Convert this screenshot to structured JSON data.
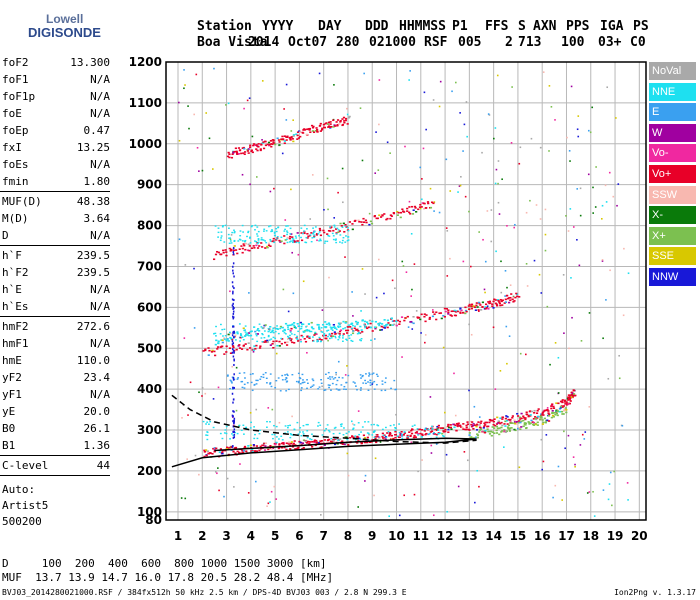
{
  "logo": {
    "line1": "Lowell",
    "line2": "DIGISONDE"
  },
  "header": {
    "labels": [
      "Station",
      "YYYY",
      "DAY",
      "DDD",
      "HHMMSS",
      "P1",
      "FFS",
      "S",
      "AXN",
      "PPS",
      "IGA",
      "PS"
    ],
    "values": [
      "Boa Vista",
      "2014",
      "Oct07",
      "280",
      "021000",
      "RSF",
      "005",
      "2",
      "713",
      "100",
      "03+",
      "C0"
    ]
  },
  "params": {
    "group1": [
      {
        "k": "foF2",
        "v": "13.300"
      },
      {
        "k": "foF1",
        "v": "N/A"
      },
      {
        "k": "foF1p",
        "v": "N/A"
      },
      {
        "k": "foE",
        "v": "N/A"
      },
      {
        "k": "foEp",
        "v": "0.47"
      },
      {
        "k": "fxI",
        "v": "13.25"
      },
      {
        "k": "foEs",
        "v": "N/A"
      },
      {
        "k": "fmin",
        "v": "1.80"
      }
    ],
    "group2": [
      {
        "k": "MUF(D)",
        "v": "48.38"
      },
      {
        "k": "M(D)",
        "v": "3.64"
      },
      {
        "k": "D",
        "v": "N/A"
      }
    ],
    "group3": [
      {
        "k": "h`F",
        "v": "239.5"
      },
      {
        "k": "h`F2",
        "v": "239.5"
      },
      {
        "k": "h`E",
        "v": "N/A"
      },
      {
        "k": "h`Es",
        "v": "N/A"
      }
    ],
    "group4": [
      {
        "k": "hmF2",
        "v": "272.6"
      },
      {
        "k": "hmF1",
        "v": "N/A"
      },
      {
        "k": "hmE",
        "v": "110.0"
      },
      {
        "k": "yF2",
        "v": "23.4"
      },
      {
        "k": "yF1",
        "v": "N/A"
      },
      {
        "k": "yE",
        "v": "20.0"
      },
      {
        "k": "B0",
        "v": "26.1"
      },
      {
        "k": "B1",
        "v": "1.36"
      }
    ],
    "group5": [
      {
        "k": "C-level",
        "v": "44"
      }
    ]
  },
  "autoscale": {
    "line1": "Auto:",
    "line2": "Artist5",
    "line3": "500200"
  },
  "legend": [
    {
      "label": "NoVal",
      "color": "#a9a9a9"
    },
    {
      "label": "NNE",
      "color": "#1ee0f0"
    },
    {
      "label": "E",
      "color": "#3aa0f0"
    },
    {
      "label": "W",
      "color": "#a000a0"
    },
    {
      "label": "Vo-",
      "color": "#f028a0"
    },
    {
      "label": "Vo+",
      "color": "#e80028"
    },
    {
      "label": "SSW",
      "color": "#f8b8b0"
    },
    {
      "label": "X-",
      "color": "#0a7a0a"
    },
    {
      "label": "X+",
      "color": "#7cc050"
    },
    {
      "label": "SSE",
      "color": "#d8c800"
    },
    {
      "label": "NNW",
      "color": "#1818d8"
    }
  ],
  "bottom": {
    "d_line": "D     100  200  400  600  800 1000 1500 3000 [km]",
    "muf_line": "MUF  13.7 13.9 14.7 16.0 17.8 20.5 28.2 48.4 [MHz]",
    "footer_left": "BVJ03_2014280021000.RSF / 384fx512h 50 kHz 2.5 km / DPS-4D BVJ03 003 / 2.8 N 299.3 E",
    "footer_right": "Ion2Png v. 1.3.17"
  },
  "chart_data": {
    "type": "scatter",
    "title": "",
    "xlabel": "",
    "ylabel": "",
    "xlim": [
      0.75,
      20
    ],
    "ylim": [
      80,
      1200
    ],
    "xticks": [
      1,
      2,
      3,
      4,
      5,
      6,
      7,
      8,
      9,
      10,
      11,
      12,
      13,
      14,
      15,
      16,
      17,
      18,
      19,
      20
    ],
    "yticks": [
      80,
      100,
      200,
      300,
      400,
      500,
      600,
      700,
      800,
      900,
      1000,
      1100,
      1200
    ],
    "grid": true,
    "legend_position": "right",
    "traces": [
      {
        "name": "O-trace F2",
        "color": "#e80028",
        "points": [
          [
            2.0,
            245
          ],
          [
            3.0,
            250
          ],
          [
            4.0,
            255
          ],
          [
            5.0,
            262
          ],
          [
            6.0,
            266
          ],
          [
            7.0,
            270
          ],
          [
            8.0,
            276
          ],
          [
            9.0,
            282
          ],
          [
            10.0,
            288
          ],
          [
            11.0,
            296
          ],
          [
            12.0,
            305
          ],
          [
            13.0,
            313
          ],
          [
            14.0,
            322
          ],
          [
            15.0,
            332
          ],
          [
            16.0,
            344
          ],
          [
            17.0,
            370
          ],
          [
            17.3,
            395
          ]
        ]
      },
      {
        "name": "X-trace F2",
        "color": "#7cc050",
        "points": [
          [
            13.0,
            290
          ],
          [
            14.0,
            300
          ],
          [
            15.0,
            312
          ],
          [
            16.0,
            326
          ],
          [
            17.0,
            355
          ]
        ]
      },
      {
        "name": "2nd hop",
        "color": "#e80028",
        "points": [
          [
            2.0,
            490
          ],
          [
            4.0,
            505
          ],
          [
            6.0,
            525
          ],
          [
            8.0,
            545
          ],
          [
            10.0,
            565
          ],
          [
            12.0,
            588
          ],
          [
            13.0,
            600
          ],
          [
            14.0,
            612
          ],
          [
            15.0,
            630
          ]
        ]
      },
      {
        "name": "2nd hop NNE",
        "color": "#1ee0f0",
        "points": [
          [
            2.5,
            520
          ],
          [
            4.0,
            545
          ],
          [
            6.0,
            555
          ],
          [
            8.0,
            560
          ],
          [
            10.0,
            565
          ]
        ]
      },
      {
        "name": "3rd hop",
        "color": "#e80028",
        "points": [
          [
            2.5,
            730
          ],
          [
            4.0,
            750
          ],
          [
            6.0,
            775
          ],
          [
            8.0,
            800
          ],
          [
            10.0,
            830
          ],
          [
            11.5,
            855
          ]
        ]
      },
      {
        "name": "4th hop",
        "color": "#e80028",
        "points": [
          [
            3.0,
            975
          ],
          [
            4.0,
            990
          ],
          [
            5.0,
            1005
          ],
          [
            6.0,
            1025
          ],
          [
            7.0,
            1045
          ],
          [
            8.0,
            1060
          ]
        ]
      }
    ],
    "profile_solid": [
      [
        0.75,
        210
      ],
      [
        2.0,
        232
      ],
      [
        3.0,
        238
      ],
      [
        4.0,
        244
      ],
      [
        6.0,
        252
      ],
      [
        8.0,
        260
      ],
      [
        10.0,
        265
      ],
      [
        12.0,
        270
      ],
      [
        13.3,
        278
      ],
      [
        12.0,
        280
      ],
      [
        10.0,
        276
      ],
      [
        8.0,
        270
      ],
      [
        6.0,
        262
      ],
      [
        4.0,
        255
      ],
      [
        2.5,
        250
      ]
    ],
    "profile_dashed": [
      [
        0.75,
        385
      ],
      [
        1.5,
        350
      ],
      [
        2.5,
        320
      ],
      [
        4.0,
        300
      ],
      [
        6.0,
        287
      ],
      [
        8.0,
        280
      ],
      [
        10.0,
        272
      ],
      [
        12.0,
        268
      ],
      [
        13.3,
        275
      ]
    ]
  }
}
